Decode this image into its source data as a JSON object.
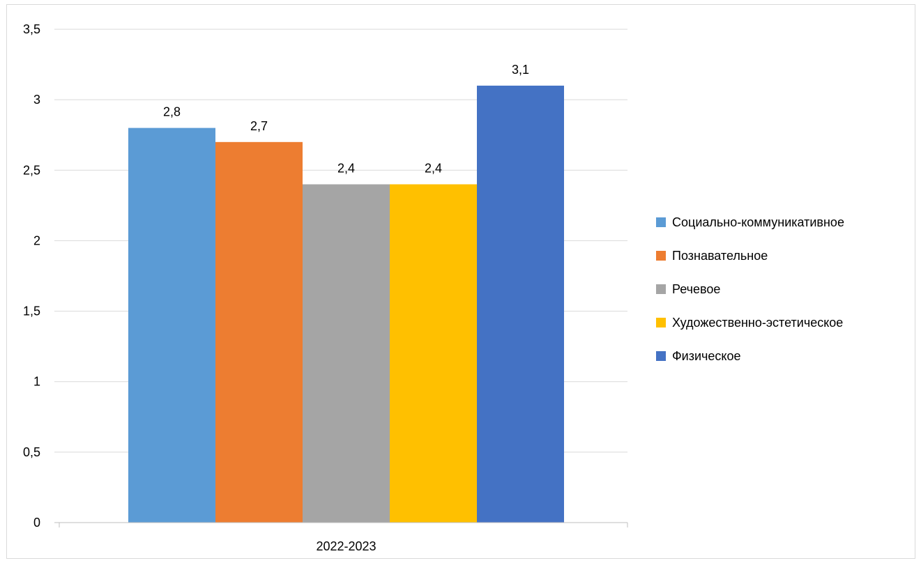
{
  "chart_data": {
    "type": "bar",
    "categories": [
      "2022-2023"
    ],
    "series": [
      {
        "name": "Социально-коммуникативное",
        "values": [
          2.8
        ],
        "color": "#5b9bd5",
        "label": "2,8"
      },
      {
        "name": "Познавательное",
        "values": [
          2.7
        ],
        "color": "#ed7d31",
        "label": "2,7"
      },
      {
        "name": "Речевое",
        "values": [
          2.4
        ],
        "color": "#a5a5a5",
        "label": "2,4"
      },
      {
        "name": "Художественно-эстетическое",
        "values": [
          2.4
        ],
        "color": "#ffc000",
        "label": "2,4"
      },
      {
        "name": "Физическое",
        "values": [
          3.1
        ],
        "color": "#4472c4",
        "label": "3,1"
      }
    ],
    "yticks": [
      {
        "value": 0,
        "label": "0"
      },
      {
        "value": 0.5,
        "label": "0,5"
      },
      {
        "value": 1,
        "label": "1"
      },
      {
        "value": 1.5,
        "label": "1,5"
      },
      {
        "value": 2,
        "label": "2"
      },
      {
        "value": 2.5,
        "label": "2,5"
      },
      {
        "value": 3,
        "label": "3"
      },
      {
        "value": 3.5,
        "label": "3,5"
      }
    ],
    "ylim": [
      0,
      3.5
    ],
    "title": "",
    "xlabel": "",
    "ylabel": "",
    "grid": true,
    "legend_position": "right",
    "colors": {
      "gridline": "#d9d9d9",
      "axis": "#bfbfbf",
      "border": "#d9d9d9"
    }
  }
}
